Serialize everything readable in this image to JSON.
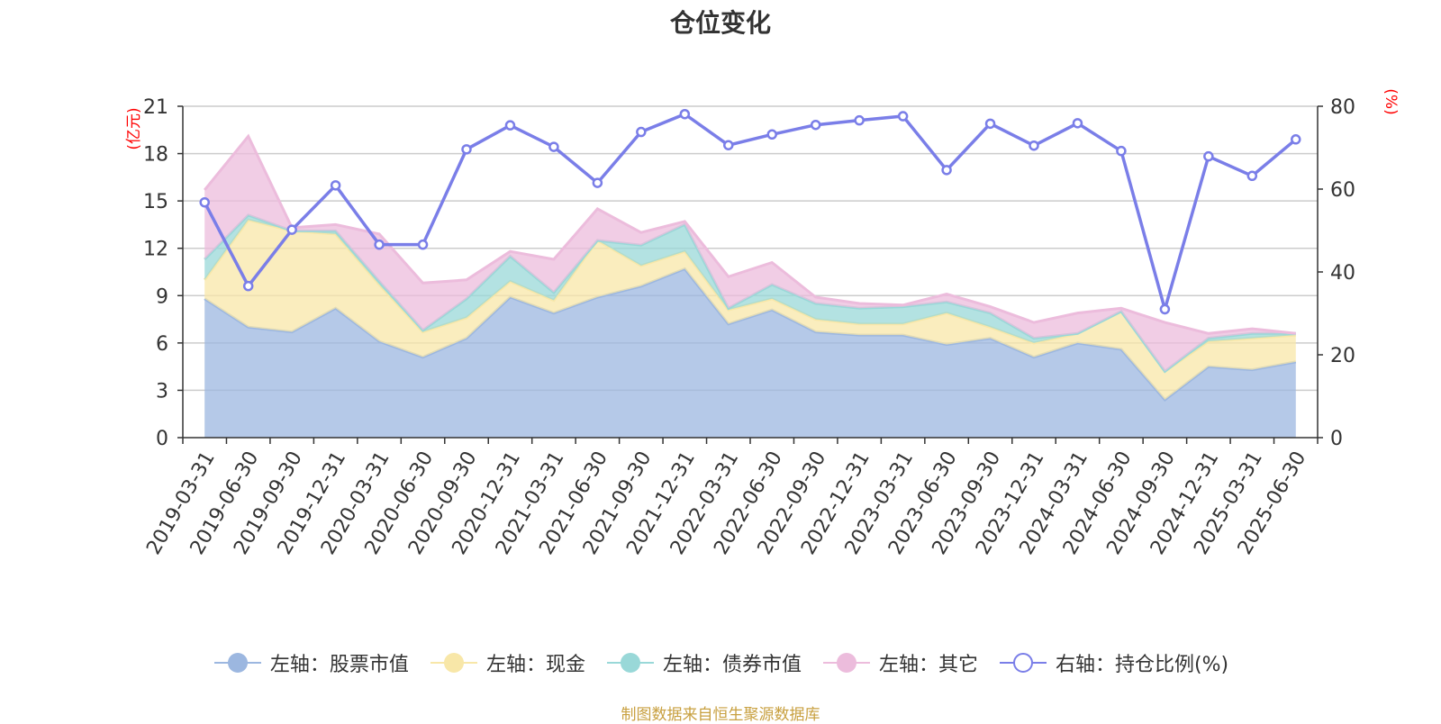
{
  "chart_data": {
    "type": "area",
    "title": "仓位变化",
    "source": "制图数据来自恒生聚源数据库",
    "left_unit": "(亿元)",
    "right_unit": "(%)",
    "y_left": {
      "min": 0,
      "max": 21,
      "ticks": [
        0,
        3,
        6,
        9,
        12,
        15,
        18,
        21
      ]
    },
    "y_right": {
      "min": 0,
      "max": 80,
      "ticks": [
        0,
        20,
        40,
        60,
        80
      ]
    },
    "x": [
      "2019-03-31",
      "2019-06-30",
      "2019-09-30",
      "2019-12-31",
      "2020-03-31",
      "2020-06-30",
      "2020-09-30",
      "2020-12-31",
      "2021-03-31",
      "2021-06-30",
      "2021-09-30",
      "2021-12-31",
      "2022-03-31",
      "2022-06-30",
      "2022-09-30",
      "2022-12-31",
      "2023-03-31",
      "2023-06-30",
      "2023-09-30",
      "2023-12-31",
      "2024-03-31",
      "2024-06-30",
      "2024-09-30",
      "2024-12-31",
      "2025-03-31",
      "2025-06-30"
    ],
    "series": [
      {
        "name": "左轴：股票市值",
        "axis": "left",
        "color": "#9cb7e0",
        "values": [
          8.8,
          7.0,
          6.7,
          8.2,
          6.1,
          5.1,
          6.3,
          8.9,
          7.9,
          8.9,
          9.6,
          10.7,
          7.2,
          8.1,
          6.7,
          6.5,
          6.5,
          5.9,
          6.3,
          5.1,
          6.0,
          5.6,
          2.4,
          4.5,
          4.3,
          4.8
        ]
      },
      {
        "name": "左轴：现金",
        "axis": "left",
        "color": "#f8e7a8",
        "values": [
          1.2,
          6.8,
          6.4,
          4.7,
          3.6,
          1.6,
          1.3,
          1.0,
          0.8,
          3.6,
          1.3,
          1.1,
          0.9,
          0.7,
          0.8,
          0.7,
          0.7,
          2.0,
          0.7,
          0.9,
          0.6,
          2.4,
          1.8,
          1.6,
          2.0,
          1.7
        ]
      },
      {
        "name": "左轴：债券市值",
        "axis": "left",
        "color": "#99d8d8",
        "values": [
          1.3,
          0.3,
          0.0,
          0.2,
          0.2,
          0.1,
          1.2,
          1.6,
          0.5,
          0.0,
          1.3,
          1.7,
          0.1,
          0.9,
          1.0,
          1.0,
          1.1,
          0.7,
          0.9,
          0.3,
          0.0,
          0.0,
          0.0,
          0.2,
          0.3,
          0.1
        ]
      },
      {
        "name": "左轴：其它",
        "axis": "left",
        "color": "#ecbcdc",
        "values": [
          4.4,
          5.0,
          0.2,
          0.4,
          3.0,
          3.0,
          1.2,
          0.3,
          2.1,
          2.0,
          0.8,
          0.2,
          2.0,
          1.4,
          0.4,
          0.3,
          0.1,
          0.5,
          0.4,
          1.0,
          1.3,
          0.2,
          3.1,
          0.3,
          0.3,
          0.0
        ]
      },
      {
        "name": "右轴：持仓比例(%)",
        "axis": "right",
        "color": "#7a7ee8",
        "values": [
          56.8,
          36.6,
          50.2,
          60.9,
          46.6,
          46.6,
          69.6,
          75.4,
          70.2,
          61.5,
          73.8,
          78.1,
          70.6,
          73.2,
          75.5,
          76.6,
          77.6,
          64.6,
          75.8,
          70.5,
          75.9,
          69.2,
          31.0,
          67.9,
          63.2,
          72.0
        ]
      }
    ]
  }
}
